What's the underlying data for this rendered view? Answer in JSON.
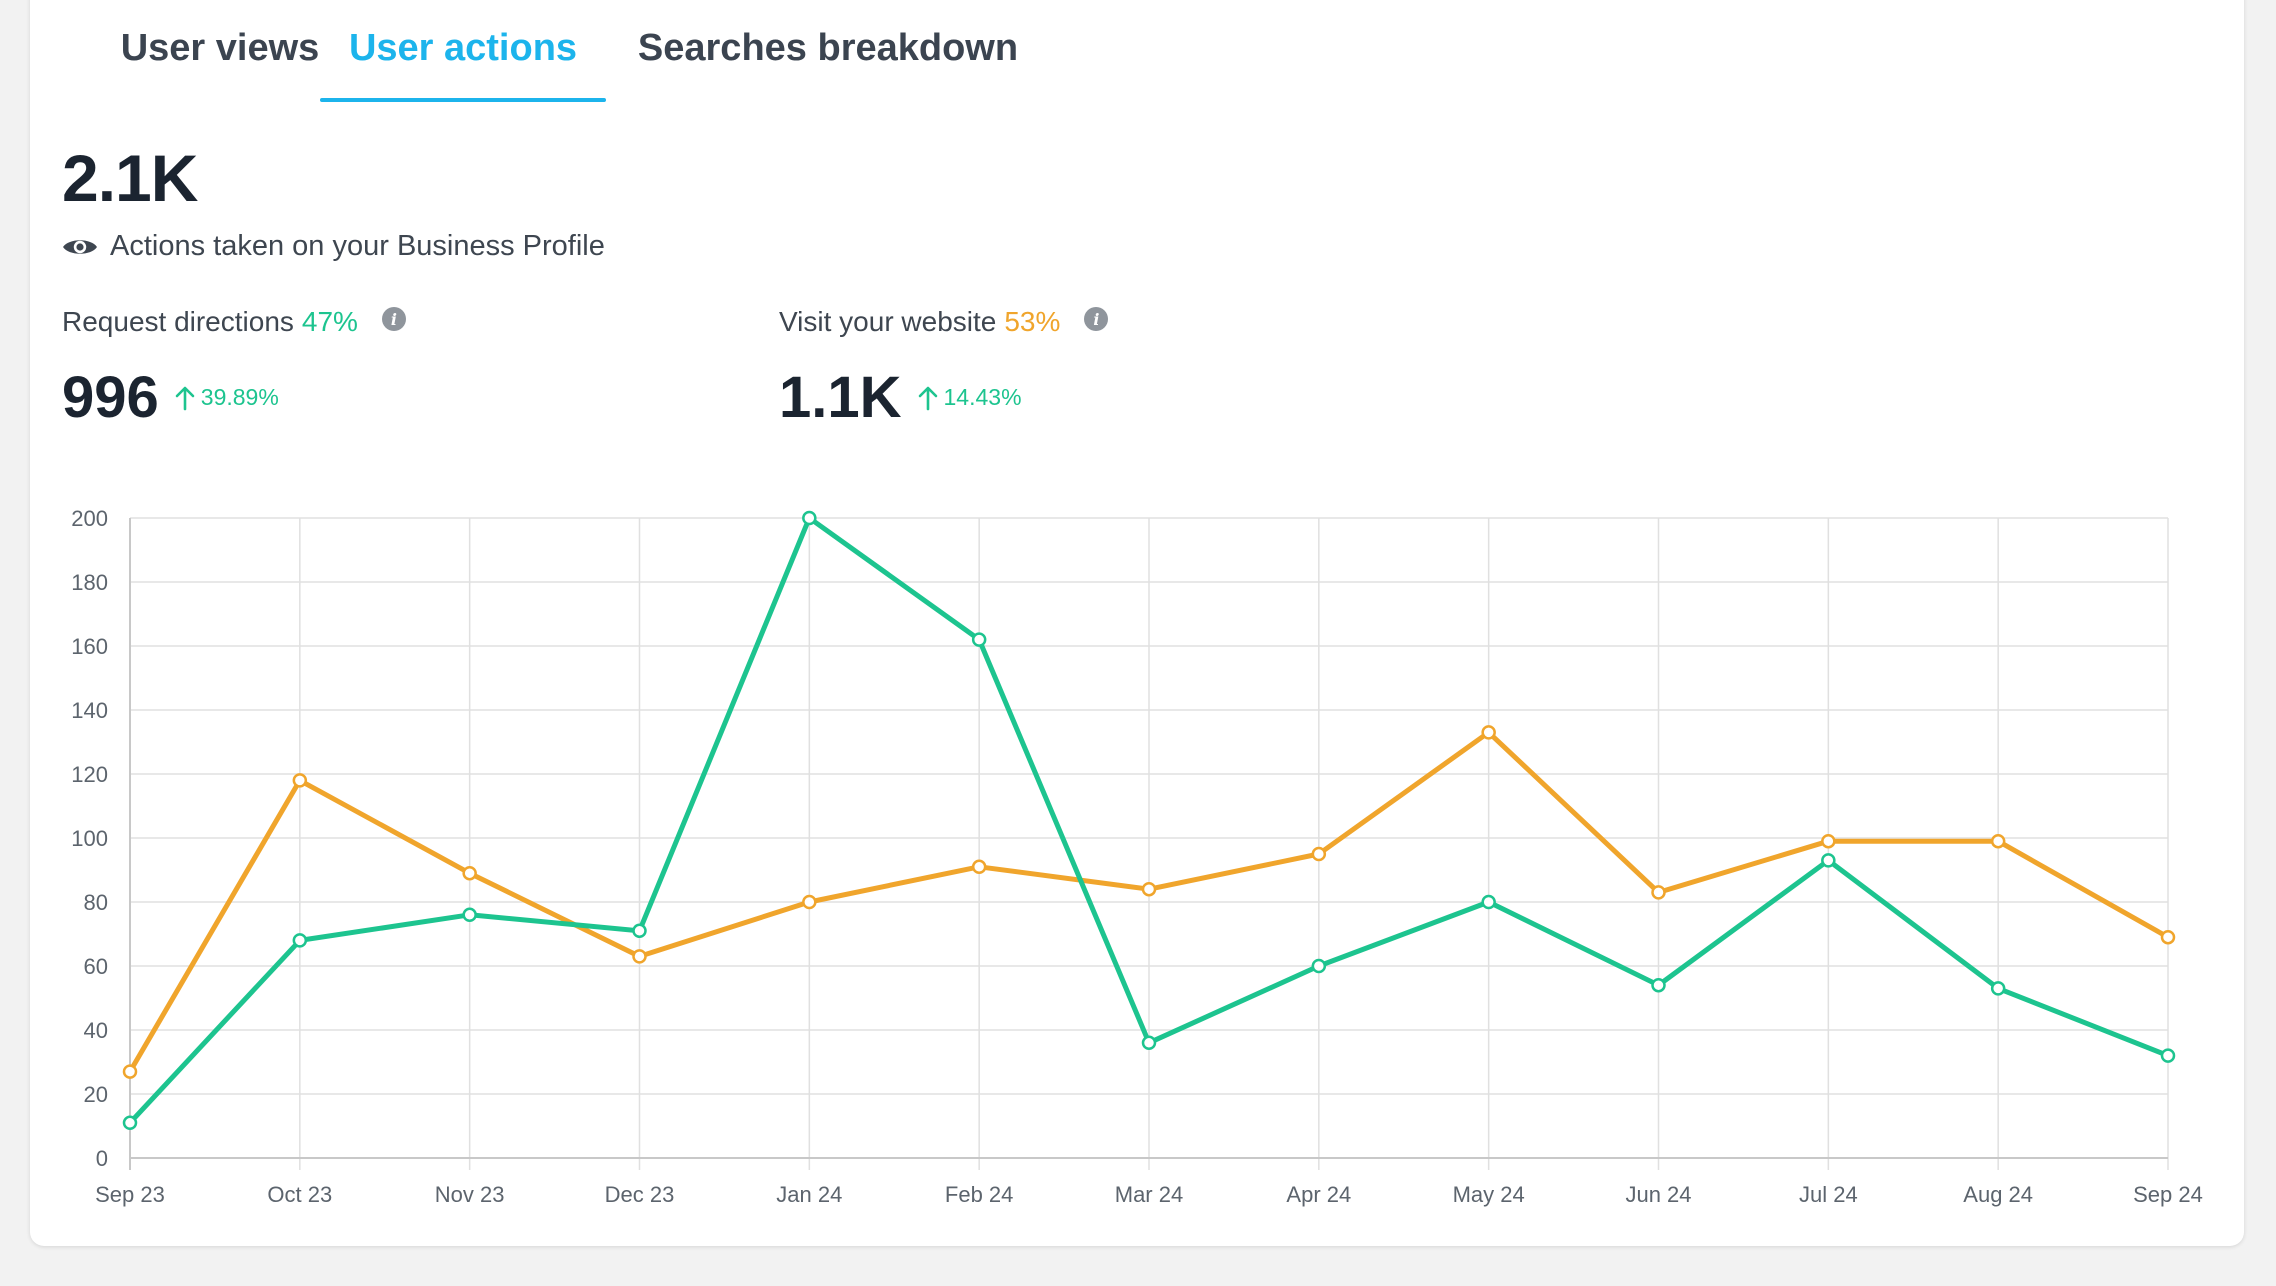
{
  "tabs": [
    {
      "label": "User views",
      "active": false
    },
    {
      "label": "User actions",
      "active": true
    },
    {
      "label": "Searches breakdown",
      "active": false
    }
  ],
  "summary": {
    "total": "2.1K",
    "subtitle": "Actions taken on your Business Profile",
    "subtitle_icon": "eye-icon"
  },
  "metrics": [
    {
      "label": "Request directions",
      "share": "47%",
      "value": "996",
      "change": "39.89%",
      "color": "#1dc48f"
    },
    {
      "label": "Visit your website",
      "share": "53%",
      "value": "1.1K",
      "change": "14.43%",
      "color": "#f0a52c"
    }
  ],
  "colors": {
    "accent": "#1cb4ec",
    "green": "#1dc48f",
    "orange": "#f0a52c",
    "grid": "#e0e0e0"
  },
  "chart_data": {
    "type": "line",
    "title": "",
    "xlabel": "",
    "ylabel": "",
    "ylim": [
      0,
      200
    ],
    "yticks": [
      0,
      20,
      40,
      60,
      80,
      100,
      120,
      140,
      160,
      180,
      200
    ],
    "grid": true,
    "categories": [
      "Sep 23",
      "Oct 23",
      "Nov 23",
      "Dec 23",
      "Jan 24",
      "Feb 24",
      "Mar 24",
      "Apr 24",
      "May 24",
      "Jun 24",
      "Jul 24",
      "Aug 24",
      "Sep 24"
    ],
    "series": [
      {
        "name": "Request directions",
        "color": "#1dc48f",
        "values": [
          11,
          68,
          76,
          71,
          200,
          162,
          36,
          60,
          80,
          54,
          93,
          53,
          32
        ]
      },
      {
        "name": "Visit your website",
        "color": "#f0a52c",
        "values": [
          27,
          118,
          89,
          63,
          80,
          91,
          84,
          95,
          133,
          83,
          99,
          99,
          69
        ]
      }
    ]
  }
}
